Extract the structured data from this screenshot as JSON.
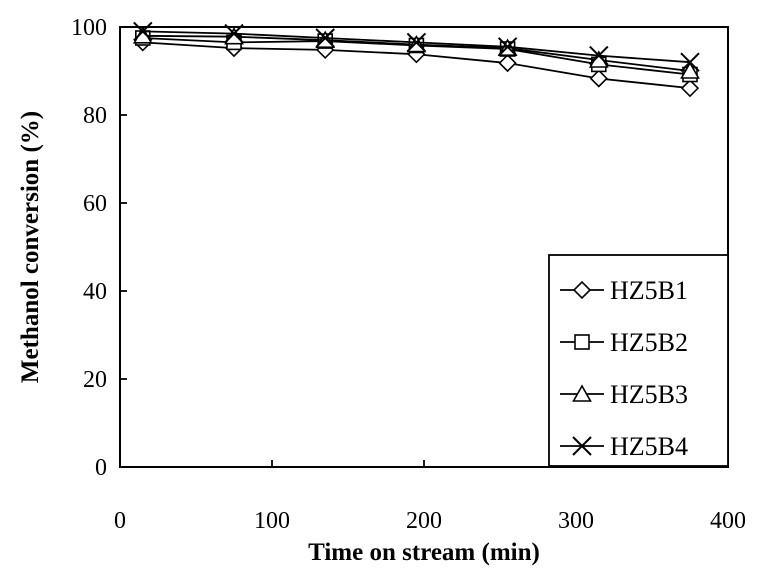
{
  "chart_data": {
    "type": "line",
    "xlabel": "Time on stream (min)",
    "ylabel": "Methanol conversion (%)",
    "xlim": [
      0,
      400
    ],
    "ylim": [
      0,
      100
    ],
    "xticks": [
      "0",
      "100",
      "200",
      "300",
      "400"
    ],
    "yticks": [
      "0",
      "20",
      "40",
      "60",
      "80",
      "100"
    ],
    "x": [
      15,
      75,
      135,
      195,
      255,
      315,
      375
    ],
    "grid": false,
    "legend_position": "bottom-right",
    "series": [
      {
        "name": "HZ5B1",
        "marker": "diamond",
        "values": [
          96.5,
          95.2,
          94.8,
          93.8,
          91.8,
          88.3,
          86.1
        ]
      },
      {
        "name": "HZ5B2",
        "marker": "square",
        "values": [
          97.5,
          96.5,
          96.8,
          95.8,
          95.0,
          91.5,
          89.2
        ]
      },
      {
        "name": "HZ5B3",
        "marker": "triangle",
        "values": [
          98.0,
          97.8,
          97.0,
          96.0,
          95.2,
          92.5,
          90.0
        ]
      },
      {
        "name": "HZ5B4",
        "marker": "x",
        "values": [
          99.0,
          98.5,
          97.5,
          96.5,
          95.5,
          93.5,
          92.0
        ]
      }
    ]
  }
}
